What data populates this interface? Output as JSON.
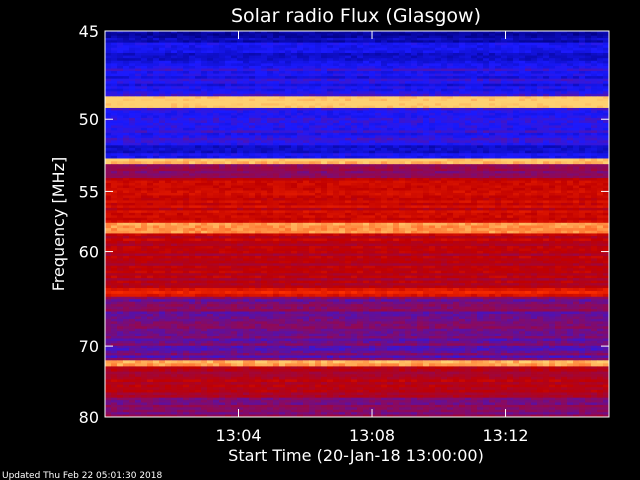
{
  "chart_data": {
    "type": "heatmap",
    "title": "Solar radio Flux (Glasgow)",
    "xlabel": "Start Time (20-Jan-18 13:00:00)",
    "ylabel": "Frequency [MHz]",
    "x_unit": "minutes after 13:00:00",
    "xlim": [
      0,
      15.1
    ],
    "ylim": [
      45,
      80
    ],
    "y_scale": "reciprocal",
    "x_ticks": [
      {
        "value": 4,
        "label": "13:04"
      },
      {
        "value": 8,
        "label": "13:08"
      },
      {
        "value": 12,
        "label": "13:12"
      }
    ],
    "y_ticks": [
      {
        "value": 45,
        "label": "45"
      },
      {
        "value": 50,
        "label": "50"
      },
      {
        "value": 55,
        "label": "55"
      },
      {
        "value": 60,
        "label": "60"
      },
      {
        "value": 70,
        "label": "70"
      },
      {
        "value": 80,
        "label": "80"
      }
    ],
    "bands": [
      {
        "from": 45.0,
        "to": 45.6,
        "level": 0.05
      },
      {
        "from": 45.6,
        "to": 47.0,
        "level": 0.16
      },
      {
        "from": 47.0,
        "to": 48.6,
        "level": 0.2
      },
      {
        "from": 48.6,
        "to": 49.3,
        "level": 1.0
      },
      {
        "from": 49.3,
        "to": 51.7,
        "level": 0.22
      },
      {
        "from": 51.7,
        "to": 52.6,
        "level": 0.15
      },
      {
        "from": 52.6,
        "to": 53.0,
        "level": 0.95
      },
      {
        "from": 53.0,
        "to": 54.0,
        "level": 0.42
      },
      {
        "from": 54.0,
        "to": 57.5,
        "level": 0.62
      },
      {
        "from": 57.5,
        "to": 58.4,
        "level": 0.88
      },
      {
        "from": 58.4,
        "to": 59.5,
        "level": 0.58
      },
      {
        "from": 59.5,
        "to": 63.5,
        "level": 0.55
      },
      {
        "from": 63.5,
        "to": 64.4,
        "level": 0.7
      },
      {
        "from": 64.4,
        "to": 68.5,
        "level": 0.38
      },
      {
        "from": 68.5,
        "to": 71.8,
        "level": 0.33
      },
      {
        "from": 71.8,
        "to": 72.6,
        "level": 0.93
      },
      {
        "from": 72.6,
        "to": 77.0,
        "level": 0.55
      },
      {
        "from": 77.0,
        "to": 80.0,
        "level": 0.4
      }
    ],
    "colors": {
      "scale": [
        "#000080",
        "#1a1aff",
        "#8a0a60",
        "#c00000",
        "#ff3000",
        "#ffd070"
      ],
      "background": "#000000",
      "text": "#ffffff"
    }
  },
  "footer": {
    "updated": "Updated Thu Feb 22 05:01:30 2018"
  }
}
